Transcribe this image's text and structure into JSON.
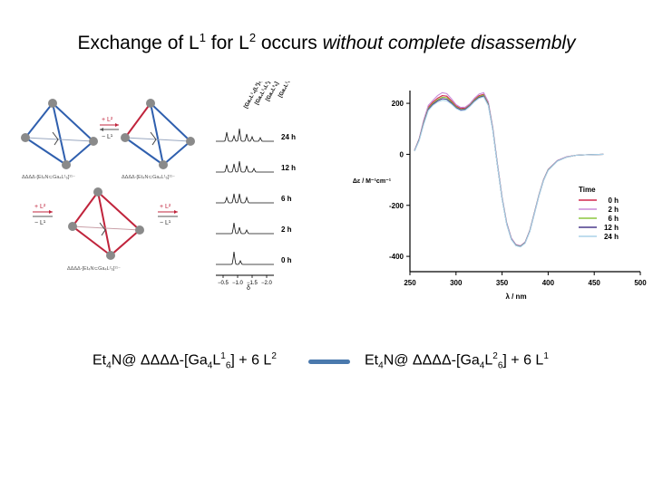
{
  "title": {
    "part1": "Exchange of L",
    "sup1": "1",
    "part2": " for L",
    "sup2": "2",
    "part3": " occurs ",
    "emph": "without complete disassembly"
  },
  "scheme": {
    "tetra_tl_label": "ΔΔΔΔ-[Et₄N⊂Ga₄L¹₆]¹¹⁻",
    "tetra_tr_label": "ΔΔΔΔ-[Et₄N⊂Ga₄L¹₆]¹¹⁻",
    "tetra_bot_label": "ΔΔΔΔ-[Et₄N⊂Ga₄L²₆]¹¹⁻",
    "arrow_top_plus": "+ L²",
    "arrow_top_minus": "− L¹",
    "arrow_left_plus": "+ L²",
    "arrow_left_minus": "− L¹",
    "arrow_right_plus": "+ L²",
    "arrow_right_minus": "− L¹"
  },
  "nmr": {
    "top_labels": [
      "[Ga₄L¹₄(L²)₂]",
      "[Ga₄L¹₅L²]",
      "[Ga₄L²₆]",
      "[Ga₄L¹₆]"
    ],
    "time_labels": [
      "24 h",
      "12 h",
      "6 h",
      "2 h",
      "0 h"
    ],
    "axis_ticks": [
      "−0.5",
      "−1.0",
      "−1.5",
      "−2.0"
    ],
    "axis_label": "δ"
  },
  "cd": {
    "legend_title": "Time",
    "legend_colors": [
      "#222222",
      "#d2284d",
      "#c88ad8",
      "#8cc63f",
      "#4a3a8c",
      "#aad2e8"
    ]
  },
  "equation": {
    "left": {
      "a": "Et",
      "a_sub": "4",
      "b": "N@ ΔΔΔΔ-[Ga",
      "b_sub": "4",
      "c": "L",
      "c_sup": "1",
      "c_sub": "6",
      "d": "] + 6 L",
      "d_sup": "2"
    },
    "right": {
      "a": "Et",
      "a_sub": "4",
      "b": "N@ ΔΔΔΔ-[Ga",
      "b_sub": "4",
      "c": "L",
      "c_sup": "2",
      "c_sub": "6",
      "d": "] + 6 L",
      "d_sup": "1"
    }
  },
  "chart_data": {
    "type": "line",
    "xlabel": "λ / nm",
    "ylabel": "Δε / M⁻¹cm⁻¹",
    "xlim": [
      250,
      500
    ],
    "ylim": [
      -460,
      250
    ],
    "xticks": [
      250,
      300,
      350,
      400,
      450,
      500
    ],
    "yticks": [
      200,
      0,
      -200,
      -400
    ],
    "legend": "right, inside",
    "grid": false,
    "x": [
      255,
      260,
      265,
      270,
      275,
      280,
      285,
      290,
      295,
      300,
      305,
      310,
      315,
      320,
      325,
      330,
      335,
      340,
      345,
      350,
      355,
      360,
      365,
      370,
      375,
      380,
      385,
      390,
      395,
      400,
      410,
      420,
      430,
      440,
      450,
      460
    ],
    "series": [
      {
        "name": "0 h",
        "values": [
          15,
          60,
          130,
          185,
          205,
          220,
          230,
          228,
          210,
          190,
          180,
          182,
          195,
          215,
          230,
          235,
          200,
          100,
          -40,
          -170,
          -270,
          -330,
          -355,
          -360,
          -345,
          -300,
          -230,
          -160,
          -100,
          -60,
          -25,
          -10,
          -4,
          -2,
          -1,
          0
        ]
      },
      {
        "name": "2 h",
        "values": [
          16,
          62,
          135,
          192,
          212,
          230,
          242,
          238,
          218,
          195,
          184,
          185,
          198,
          220,
          236,
          242,
          206,
          104,
          -38,
          -168,
          -268,
          -328,
          -353,
          -358,
          -344,
          -299,
          -229,
          -159,
          -99,
          -59,
          -24,
          -10,
          -4,
          -2,
          -1,
          0
        ]
      },
      {
        "name": "6 h",
        "values": [
          14,
          58,
          125,
          180,
          200,
          214,
          224,
          222,
          205,
          186,
          176,
          178,
          192,
          212,
          226,
          232,
          197,
          98,
          -42,
          -172,
          -272,
          -332,
          -356,
          -361,
          -346,
          -301,
          -231,
          -161,
          -101,
          -61,
          -26,
          -11,
          -4,
          -2,
          -1,
          0
        ]
      },
      {
        "name": "12 h",
        "values": [
          14,
          56,
          122,
          176,
          196,
          210,
          218,
          216,
          201,
          183,
          174,
          176,
          190,
          209,
          223,
          228,
          194,
          96,
          -43,
          -173,
          -273,
          -333,
          -357,
          -362,
          -347,
          -302,
          -232,
          -162,
          -102,
          -62,
          -26,
          -11,
          -4,
          -2,
          -1,
          0
        ]
      },
      {
        "name": "24 h",
        "values": [
          13,
          54,
          118,
          172,
          192,
          205,
          212,
          210,
          197,
          180,
          171,
          173,
          187,
          206,
          220,
          225,
          191,
          94,
          -44,
          -174,
          -274,
          -334,
          -358,
          -363,
          -348,
          -303,
          -233,
          -163,
          -103,
          -63,
          -27,
          -11,
          -4,
          -2,
          -1,
          0
        ]
      }
    ]
  }
}
